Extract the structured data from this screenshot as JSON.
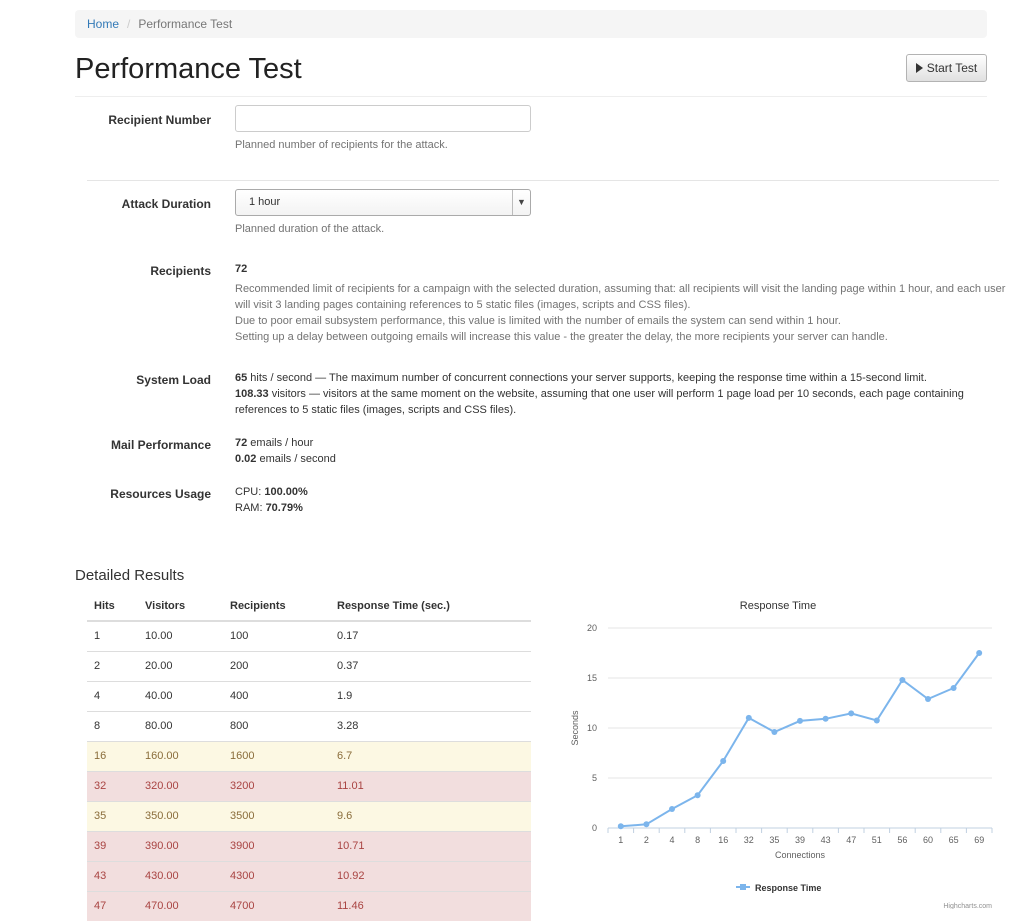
{
  "breadcrumb": {
    "home": "Home",
    "current": "Performance Test"
  },
  "header": {
    "title": "Performance Test",
    "start_button": "Start Test"
  },
  "form": {
    "recipient_number": {
      "label": "Recipient Number",
      "value": "",
      "help": "Planned number of recipients for the attack."
    },
    "attack_duration": {
      "label": "Attack Duration",
      "selected": "1 hour",
      "help": "Planned duration of the attack."
    }
  },
  "recipients": {
    "label": "Recipients",
    "value": "72",
    "line1": "Recommended limit of recipients for a campaign with the selected duration, assuming that: all recipients will visit the landing page within 1 hour, and each user",
    "line2": "will visit 3 landing pages containing references to 5 static files (images, scripts and CSS files).",
    "line3": "Due to poor email subsystem performance, this value is limited with the number of emails the system can send within 1 hour.",
    "line4": "Setting up a delay between outgoing emails will increase this value - the greater the delay, the more recipients your server can handle."
  },
  "system_load": {
    "label": "System Load",
    "hits": "65",
    "hits_text": " hits / second — The maximum number of concurrent connections your server supports, keeping the response time within a 15-second limit.",
    "visitors": "108.33",
    "visitors_text": " visitors — visitors at the same moment on the website, assuming that one user will perform 1 page load per 10 seconds, each page containing",
    "visitors_text2": "references to 5 static files (images, scripts and CSS files)."
  },
  "mail_performance": {
    "label": "Mail Performance",
    "per_hour": "72",
    "per_hour_text": " emails / hour",
    "per_second": "0.02",
    "per_second_text": " emails / second"
  },
  "resources": {
    "label": "Resources Usage",
    "cpu_label": "CPU: ",
    "cpu": "100.00%",
    "ram_label": "RAM: ",
    "ram": "70.79%"
  },
  "detailed": {
    "title": "Detailed Results",
    "columns": [
      "Hits",
      "Visitors",
      "Recipients",
      "Response Time (sec.)"
    ],
    "rows": [
      {
        "cells": [
          "1",
          "10.00",
          "100",
          "0.17"
        ],
        "status": ""
      },
      {
        "cells": [
          "2",
          "20.00",
          "200",
          "0.37"
        ],
        "status": ""
      },
      {
        "cells": [
          "4",
          "40.00",
          "400",
          "1.9"
        ],
        "status": ""
      },
      {
        "cells": [
          "8",
          "80.00",
          "800",
          "3.28"
        ],
        "status": ""
      },
      {
        "cells": [
          "16",
          "160.00",
          "1600",
          "6.7"
        ],
        "status": "warning"
      },
      {
        "cells": [
          "32",
          "320.00",
          "3200",
          "11.01"
        ],
        "status": "danger"
      },
      {
        "cells": [
          "35",
          "350.00",
          "3500",
          "9.6"
        ],
        "status": "warning"
      },
      {
        "cells": [
          "39",
          "390.00",
          "3900",
          "10.71"
        ],
        "status": "danger"
      },
      {
        "cells": [
          "43",
          "430.00",
          "4300",
          "10.92"
        ],
        "status": "danger"
      },
      {
        "cells": [
          "47",
          "470.00",
          "4700",
          "11.46"
        ],
        "status": "danger"
      }
    ]
  },
  "chart_data": {
    "type": "line",
    "title": "Response Time",
    "xlabel": "Connections",
    "ylabel": "Seconds",
    "categories": [
      "1",
      "2",
      "4",
      "8",
      "16",
      "32",
      "35",
      "39",
      "43",
      "47",
      "51",
      "56",
      "60",
      "65",
      "69"
    ],
    "series": [
      {
        "name": "Response Time",
        "values": [
          0.17,
          0.37,
          1.9,
          3.28,
          6.7,
          11.01,
          9.6,
          10.71,
          10.92,
          11.46,
          10.75,
          14.8,
          12.9,
          14.0,
          17.5
        ],
        "color": "#7cb5ec"
      }
    ],
    "ylim": [
      0,
      20
    ],
    "yticks": [
      0,
      5,
      10,
      15,
      20
    ],
    "grid": true,
    "legend": "bottom-center",
    "credits": "Highcharts.com"
  }
}
